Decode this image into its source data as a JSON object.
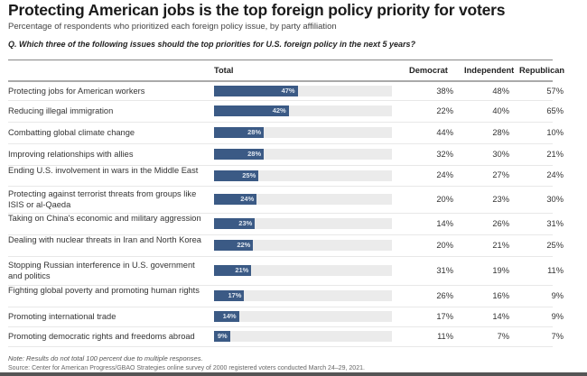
{
  "header": {
    "title": "Protecting American jobs is the top foreign policy priority for voters",
    "subtitle": "Percentage of respondents who prioritized each foreign policy issue, by party affiliation",
    "question": "Q. Which three of the following issues should the top priorities for U.S. foreign policy in the next 5 years?"
  },
  "columns": {
    "total": "Total",
    "democrat": "Democrat",
    "independent": "Independent",
    "republican": "Republican"
  },
  "colors": {
    "bar": "#3b5a85",
    "track": "#ebebeb"
  },
  "footer": {
    "note": "Note: Results do not total 100 percent due to multiple responses.",
    "source": "Source: Center for American Progress/GBAO Strategies online survey of 2000 registered voters conducted March 24–29, 2021."
  },
  "chart_data": {
    "type": "bar",
    "orientation": "horizontal",
    "title": "Protecting American jobs is the top foreign policy priority for voters",
    "subtitle": "Percentage of respondents who prioritized each foreign policy issue, by party affiliation",
    "xlim": [
      0,
      100
    ],
    "unit": "%",
    "categories": [
      "Protecting jobs for American workers",
      "Reducing illegal immigration",
      "Combatting global climate change",
      "Improving relationships with allies",
      "Ending U.S. involvement in wars in the Middle East",
      "Protecting against terrorist threats from groups like ISIS or al-Qaeda",
      "Taking on China's economic and military aggression",
      "Dealing with nuclear threats in Iran and North Korea",
      "Stopping Russian interference in U.S. government and politics",
      "Fighting global poverty and promoting human rights",
      "Promoting international trade",
      "Promoting democratic rights and freedoms abroad"
    ],
    "series": [
      {
        "name": "Total",
        "values": [
          47,
          42,
          28,
          28,
          25,
          24,
          23,
          22,
          21,
          17,
          14,
          9
        ]
      },
      {
        "name": "Democrat",
        "values": [
          38,
          22,
          44,
          32,
          24,
          20,
          14,
          20,
          31,
          26,
          17,
          11
        ]
      },
      {
        "name": "Independent",
        "values": [
          48,
          40,
          28,
          30,
          27,
          23,
          26,
          21,
          19,
          16,
          14,
          7
        ]
      },
      {
        "name": "Republican",
        "values": [
          57,
          65,
          10,
          21,
          24,
          30,
          31,
          25,
          11,
          9,
          9,
          7
        ]
      }
    ]
  }
}
